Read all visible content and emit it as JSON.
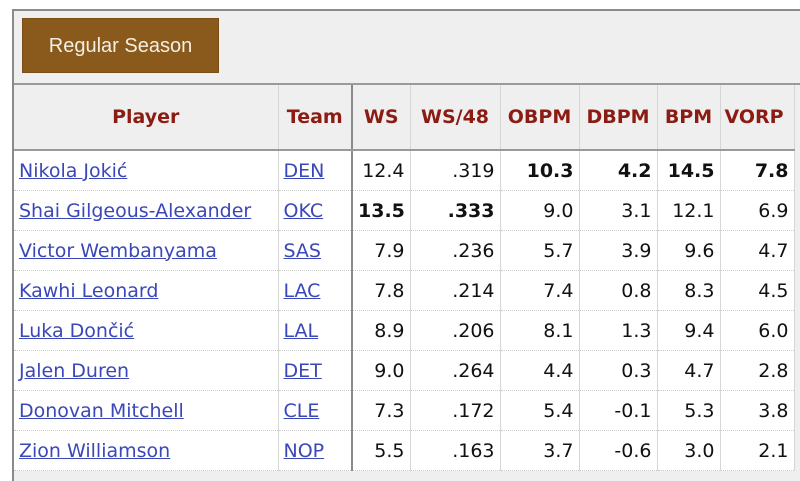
{
  "tab": {
    "label": "Regular Season"
  },
  "columns": [
    "Player",
    "Team",
    "WS",
    "WS/48",
    "OBPM",
    "DBPM",
    "BPM",
    "VORP"
  ],
  "rows": [
    {
      "player": "Nikola Jokić",
      "team": "DEN",
      "ws": "12.4",
      "ws48": ".319",
      "obpm": "10.3",
      "dbpm": "4.2",
      "bpm": "14.5",
      "vorp": "7.8",
      "bold": [
        "obpm",
        "dbpm",
        "bpm",
        "vorp"
      ]
    },
    {
      "player": "Shai Gilgeous-Alexander",
      "team": "OKC",
      "ws": "13.5",
      "ws48": ".333",
      "obpm": "9.0",
      "dbpm": "3.1",
      "bpm": "12.1",
      "vorp": "6.9",
      "bold": [
        "ws",
        "ws48"
      ]
    },
    {
      "player": "Victor Wembanyama",
      "team": "SAS",
      "ws": "7.9",
      "ws48": ".236",
      "obpm": "5.7",
      "dbpm": "3.9",
      "bpm": "9.6",
      "vorp": "4.7",
      "bold": []
    },
    {
      "player": "Kawhi Leonard",
      "team": "LAC",
      "ws": "7.8",
      "ws48": ".214",
      "obpm": "7.4",
      "dbpm": "0.8",
      "bpm": "8.3",
      "vorp": "4.5",
      "bold": []
    },
    {
      "player": "Luka Dončić",
      "team": "LAL",
      "ws": "8.9",
      "ws48": ".206",
      "obpm": "8.1",
      "dbpm": "1.3",
      "bpm": "9.4",
      "vorp": "6.0",
      "bold": []
    },
    {
      "player": "Jalen Duren",
      "team": "DET",
      "ws": "9.0",
      "ws48": ".264",
      "obpm": "4.4",
      "dbpm": "0.3",
      "bpm": "4.7",
      "vorp": "2.8",
      "bold": []
    },
    {
      "player": "Donovan Mitchell",
      "team": "CLE",
      "ws": "7.3",
      "ws48": ".172",
      "obpm": "5.4",
      "dbpm": "-0.1",
      "bpm": "5.3",
      "vorp": "3.8",
      "bold": []
    },
    {
      "player": "Zion Williamson",
      "team": "NOP",
      "ws": "5.5",
      "ws48": ".163",
      "obpm": "3.7",
      "dbpm": "-0.6",
      "bpm": "3.0",
      "vorp": "2.1",
      "bold": []
    }
  ],
  "colors": {
    "header_text": "#8c1c13",
    "tab_bg": "#8a5a1c",
    "link": "#3a47b8"
  }
}
